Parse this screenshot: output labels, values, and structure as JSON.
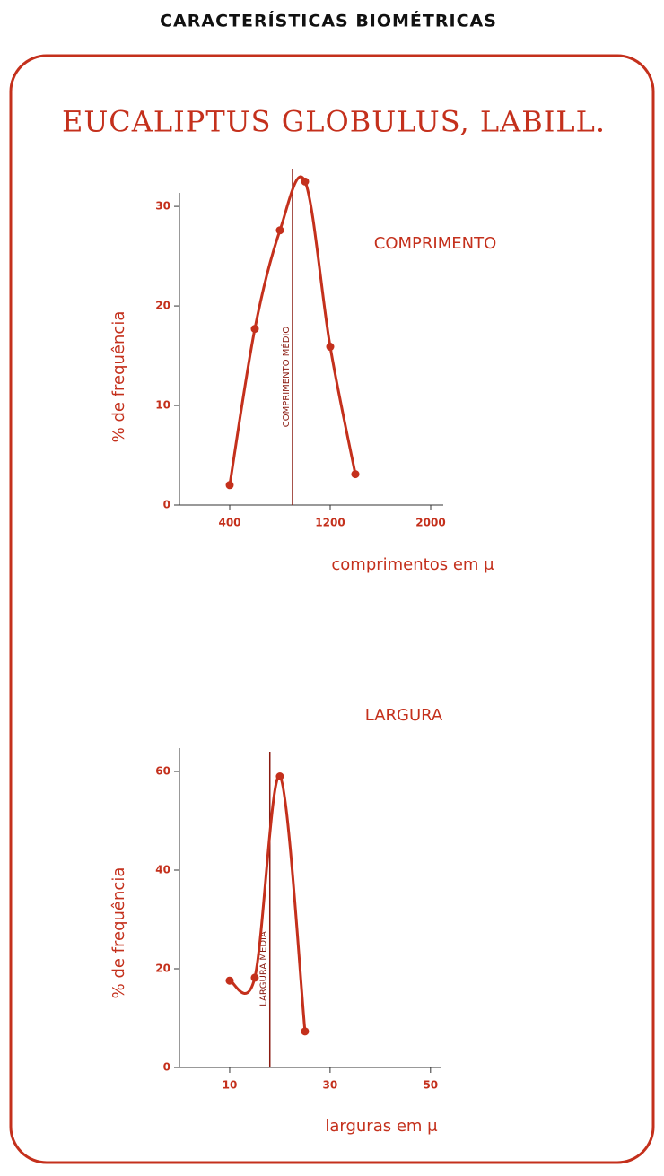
{
  "header": "CARACTERÍSTICAS BIOMÉTRICAS",
  "title": "EUCALIPTUS GLOBULUS, LABILL.",
  "chart_data": [
    {
      "type": "line",
      "color": "#c4301c",
      "series": [
        {
          "name": "COMPRIMENTO",
          "color": "#c4301c",
          "x": [
            400,
            600,
            800,
            1000,
            1200,
            1400
          ],
          "values": [
            2,
            17.7,
            27.6,
            32.5,
            15.9,
            3.1
          ]
        }
      ],
      "x_label": "comprimentos em μ",
      "y_label": "% de frequência",
      "xlim": [
        0,
        2100
      ],
      "xticks": [
        400,
        1200,
        2000
      ],
      "ylim": [
        0,
        31
      ],
      "yticks": [
        0,
        10,
        20,
        30
      ],
      "mean_line": {
        "x": 900,
        "label": "COMPRIMENTO MÉDIO"
      }
    },
    {
      "type": "line",
      "color": "#c4301c",
      "series": [
        {
          "name": "LARGURA",
          "color": "#c4301c",
          "x": [
            10,
            15,
            20,
            25
          ],
          "values": [
            17.6,
            18.2,
            59,
            7.3
          ]
        }
      ],
      "x_label": "larguras em μ",
      "y_label": "% de frequência",
      "xlim": [
        0,
        52
      ],
      "xticks": [
        10,
        30,
        50
      ],
      "ylim": [
        0,
        64
      ],
      "yticks": [
        0,
        20,
        40,
        60
      ],
      "mean_line": {
        "x": 18,
        "label": "LARGURA MÉDIA"
      }
    }
  ]
}
